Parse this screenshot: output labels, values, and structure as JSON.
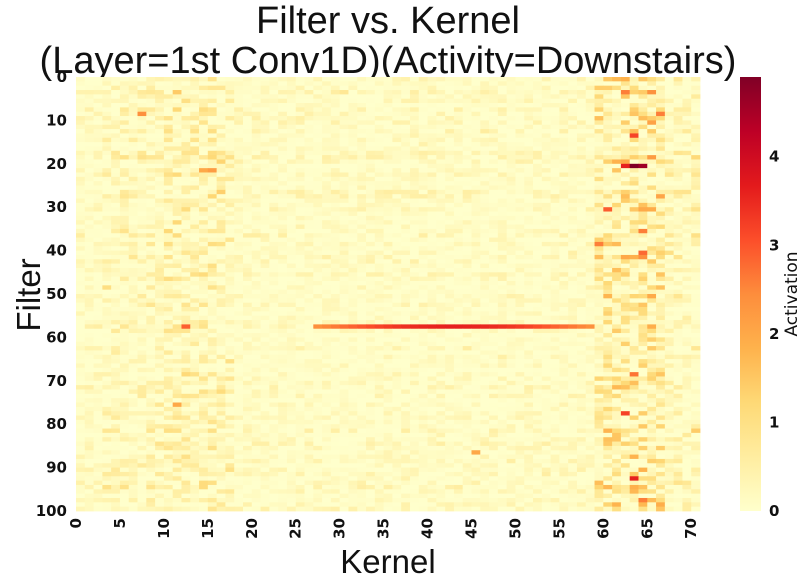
{
  "chart_data": {
    "type": "heatmap",
    "title_lines": [
      "Filter vs. Kernel",
      "(Layer=1st Conv1D)(Activity=Downstairs)"
    ],
    "xlabel": "Kernel",
    "ylabel": "Filter",
    "n_rows": 100,
    "n_cols": 71,
    "x_ticks": [
      "0",
      "5",
      "10",
      "15",
      "20",
      "25",
      "30",
      "35",
      "40",
      "45",
      "50",
      "55",
      "60",
      "65",
      "70"
    ],
    "x_tick_values": [
      0,
      5,
      10,
      15,
      20,
      25,
      30,
      35,
      40,
      45,
      50,
      55,
      60,
      65,
      70
    ],
    "y_ticks": [
      "0",
      "10",
      "20",
      "30",
      "40",
      "50",
      "60",
      "70",
      "80",
      "90",
      "100"
    ],
    "y_tick_values": [
      0,
      10,
      20,
      30,
      40,
      50,
      60,
      70,
      80,
      90,
      100
    ],
    "colormap": "YlOrRd",
    "colormap_stops": [
      "#ffffcc",
      "#ffeda0",
      "#fed976",
      "#feb24c",
      "#fd8d3c",
      "#fc4e2a",
      "#e31a1c",
      "#bd0026",
      "#800026"
    ],
    "value_range": [
      0,
      4.9
    ],
    "colorbar": {
      "label": "Activation",
      "ticks": [
        "0",
        "1",
        "2",
        "3",
        "4"
      ],
      "tick_values": [
        0,
        1,
        2,
        3,
        4
      ]
    },
    "hot_cells": [
      {
        "row": 20,
        "col": 63,
        "value": 4.9
      },
      {
        "row": 20,
        "col": 64,
        "value": 4.6
      },
      {
        "row": 20,
        "col": 62,
        "value": 3.6
      },
      {
        "row": 21,
        "col": 15,
        "value": 2.2
      },
      {
        "row": 21,
        "col": 14,
        "value": 2.0
      },
      {
        "row": 8,
        "col": 7,
        "value": 2.4
      },
      {
        "row": 13,
        "col": 63,
        "value": 3.2
      },
      {
        "row": 3,
        "col": 62,
        "value": 2.6
      },
      {
        "row": 8,
        "col": 66,
        "value": 2.6
      },
      {
        "row": 35,
        "col": 64,
        "value": 2.6
      },
      {
        "row": 40,
        "col": 64,
        "value": 2.8
      },
      {
        "row": 38,
        "col": 59,
        "value": 2.6
      },
      {
        "row": 57,
        "col": 12,
        "value": 2.9
      },
      {
        "row": 68,
        "col": 63,
        "value": 2.7
      },
      {
        "row": 77,
        "col": 62,
        "value": 3.2
      },
      {
        "row": 92,
        "col": 63,
        "value": 3.6
      },
      {
        "row": 97,
        "col": 64,
        "value": 2.6
      },
      {
        "row": 75,
        "col": 11,
        "value": 2.0
      },
      {
        "row": 86,
        "col": 45,
        "value": 2.0
      }
    ],
    "hot_row_segments": [
      {
        "row": 57,
        "col_start": 27,
        "col_end": 58,
        "value_min": 2.4,
        "value_max": 3.6
      }
    ],
    "notes_bands": "Higher activation concentrated in kernel columns 60-66 and 10-17."
  }
}
